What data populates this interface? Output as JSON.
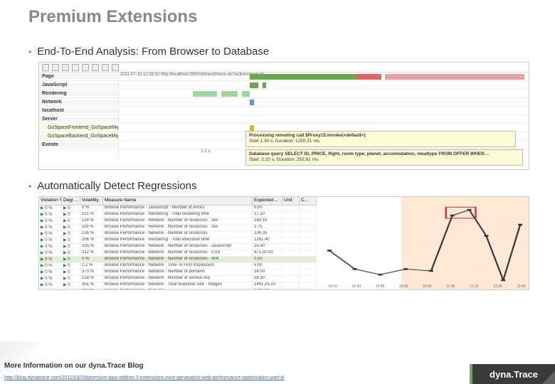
{
  "title": "Premium Extensions",
  "bullets": {
    "b1": "End-To-End Analysis: From Browser to Database",
    "b2": "Automatically Detect Regressions"
  },
  "gantt": {
    "url_cell": "2011-07-15 12:25:52    http://localhost:3000/dt/trend/menu.do?action=queryall",
    "rows": [
      {
        "label": "Page",
        "bars": []
      },
      {
        "label": "JavaScript",
        "bars": [
          {
            "l": 32,
            "w": 2,
            "c": "#6aa84f"
          },
          {
            "l": 35,
            "w": 1,
            "c": "#6aa84f"
          }
        ]
      },
      {
        "label": "Rendering",
        "bars": [
          {
            "l": 18,
            "w": 6,
            "c": "#9fd69f"
          },
          {
            "l": 25,
            "w": 4,
            "c": "#9fd69f"
          },
          {
            "l": 30,
            "w": 2,
            "c": "#9fd69f"
          }
        ]
      },
      {
        "label": "Network",
        "bars": [
          {
            "l": 32,
            "w": 1,
            "c": "#5b9bd5"
          }
        ]
      },
      {
        "label": "localhost",
        "bars": [],
        "indent": true
      },
      {
        "label": "Server",
        "bars": []
      },
      {
        "label": "GoSpaceFrontend_GoSpaceMigrations",
        "bars": [
          {
            "l": 32,
            "w": 1,
            "c": "#e8b323"
          }
        ],
        "sub": true
      },
      {
        "label": "GoSpaceBackend_GoSpaceMigrations",
        "bars": [
          {
            "l": 33,
            "w": 1,
            "c": "#e8b323"
          }
        ],
        "sub": true
      },
      {
        "label": "Events",
        "bars": []
      }
    ],
    "page_bars": [
      {
        "l": 32,
        "w": 26,
        "c": "#6aa84f"
      },
      {
        "l": 58,
        "w": 6,
        "c": "#e06666"
      },
      {
        "l": 65,
        "w": 34,
        "c": "#e8a0a0"
      }
    ],
    "tick_label": "1.2 s",
    "tooltip1": {
      "title": "Processing remoting call $Proxy15.invoke(<default>)",
      "sub": "Start 1.30 s, Duration: 1250.31 ms"
    },
    "tooltip2": {
      "title": "Database query SELECT ID, PRICE, flight, room type, planet, accomodation, mealtype FROM OFFER WHER…",
      "sub": "Start: 2.20 s, Duration: 253.81 ms"
    }
  },
  "regressions": {
    "headers": [
      "Violation %",
      "Degr…",
      "Volatility",
      "Measure Name",
      "Expected…",
      "Unit",
      "C…"
    ],
    "highlight_index": 8,
    "rows": [
      [
        "0 %",
        "0",
        "0 %",
        "Browse Performance · JavaScript · Number of errors",
        "0.00",
        "",
        ""
      ],
      [
        "0 %",
        "0",
        "121 %",
        "Browse Performance · Rendering · Total rendering time",
        "17.10",
        "",
        ""
      ],
      [
        "0 %",
        "0",
        "224 %",
        "Browse Performance · Network · Number of resources · 3xx",
        "149.15",
        "",
        ""
      ],
      [
        "0 %",
        "0",
        "118 %",
        "Browse Performance · Network · Number of resources · 3xx",
        "1.75",
        "",
        ""
      ],
      [
        "0 %",
        "0",
        "226 %",
        "Browse Performance · Network · Number of resources",
        "106.35",
        "",
        ""
      ],
      [
        "0 %",
        "0",
        "206 %",
        "Browse Performance · Rendering · Total execution time",
        "1261.40",
        "",
        ""
      ],
      [
        "0 %",
        "0",
        "335 %",
        "Browse Performance · Network · Number of resources · JavaScript",
        "25.50",
        "",
        ""
      ],
      [
        "0 %",
        "0",
        "312 %",
        "Browse Performance · Network · Number of resources · CSS",
        "471.92.00",
        "",
        ""
      ],
      [
        "0 %",
        "0",
        "0 %",
        "Browse Performance · Network · Number of resources · 404",
        "0.00",
        "",
        ""
      ],
      [
        "0 %",
        "0",
        "2.2 %",
        "Browse Performance · Network · Time To First Impression",
        "5.00",
        "",
        ""
      ],
      [
        "0 %",
        "0",
        "373 %",
        "Browse Performance · Network · Number of domains",
        "14.00",
        "",
        ""
      ],
      [
        "0 %",
        "0",
        "218 %",
        "Browse Performance · Network · Number of service req",
        "58.30",
        "",
        ""
      ],
      [
        "0 %",
        "0",
        "351 %",
        "Browse Performance · Network · Total response size · Images",
        "1442.25.23",
        "",
        ""
      ],
      [
        "0 %",
        "0",
        "213 %",
        "Browse Performance · Network · …",
        "2731.84",
        "",
        ""
      ],
      [
        "0 %",
        "0",
        "4.0 %",
        "Browse Performance · Network · Number of resources · 4xx",
        "1.47",
        "",
        ""
      ],
      [
        "0 %",
        "0",
        "7.8 %",
        "Browse Performance · Rendering · Number of redows",
        "1.42",
        "",
        ""
      ]
    ]
  },
  "chart": {
    "type": "line",
    "bg_left": "#ffffff",
    "bg_right": "#ffe8d6",
    "line_color": "#3a3a3a",
    "marker_color": "#3a3a3a",
    "highlight_box_color": "#cc3333",
    "points": [
      {
        "x": 6,
        "y": 58
      },
      {
        "x": 18,
        "y": 78
      },
      {
        "x": 30,
        "y": 84
      },
      {
        "x": 42,
        "y": 78
      },
      {
        "x": 54,
        "y": 80
      },
      {
        "x": 64,
        "y": 20
      },
      {
        "x": 72,
        "y": 14
      },
      {
        "x": 80,
        "y": 42
      },
      {
        "x": 88,
        "y": 90
      },
      {
        "x": 96,
        "y": 30
      }
    ],
    "highlight_points": [
      5,
      6
    ],
    "x_ticks": [
      "10:15",
      "10:30",
      "10:45",
      "10:50",
      "10:55",
      "11:00",
      "11:15",
      "11:30",
      "11:45"
    ]
  },
  "footer": {
    "title": "More Information on our dyna.Trace Blog",
    "link": "http://blog.dynatrace.com/2011/03/29/premium-ajax-edition-3-extensions-next-generation-web-performance-optimization-part-ii/",
    "brand": "dyna.Trace"
  }
}
